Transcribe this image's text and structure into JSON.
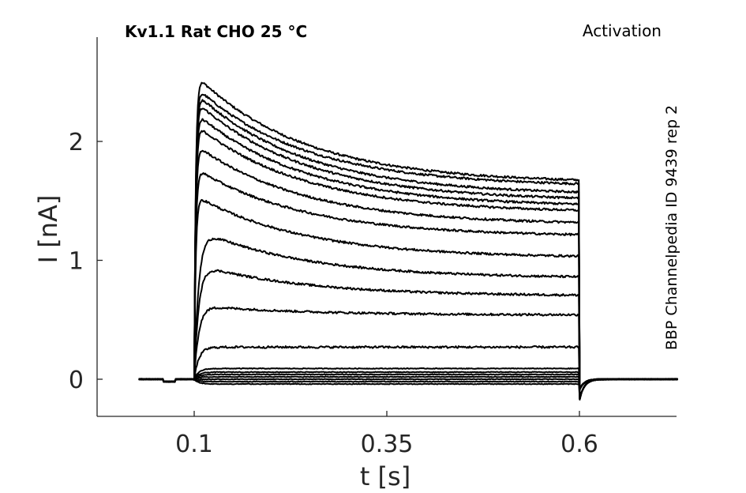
{
  "chart_data": {
    "type": "line",
    "title": "Kv1.1  Rat  CHO  25 °C",
    "right_title": "Activation",
    "side_label": "BBP Channelpedia ID 9439 rep 2",
    "xlabel": "t [s]",
    "ylabel": "I [nA]",
    "xlim": [
      -0.0,
      0.75
    ],
    "ylim": [
      -0.3,
      2.9
    ],
    "xticks": [
      0.1,
      0.35,
      0.6
    ],
    "xtick_labels": [
      "0.1",
      "0.35",
      "0.6"
    ],
    "yticks": [
      0,
      1,
      2
    ],
    "ytick_labels": [
      "0",
      "1",
      "2"
    ],
    "grid": false,
    "stimulus": {
      "on": 0.1,
      "off": 0.6,
      "t_start": 0.028,
      "t_end": 0.728
    },
    "series": [
      {
        "peak": 2.57,
        "end": 1.65
      },
      {
        "peak": 2.47,
        "end": 1.62
      },
      {
        "peak": 2.42,
        "end": 1.55
      },
      {
        "peak": 2.35,
        "end": 1.5
      },
      {
        "peak": 2.25,
        "end": 1.45
      },
      {
        "peak": 2.15,
        "end": 1.4
      },
      {
        "peak": 1.98,
        "end": 1.3
      },
      {
        "peak": 1.78,
        "end": 1.2
      },
      {
        "peak": 1.55,
        "end": 1.02
      },
      {
        "peak": 1.27,
        "end": 0.85
      },
      {
        "peak": 0.97,
        "end": 0.7
      },
      {
        "peak": 0.62,
        "end": 0.54
      },
      {
        "peak": 0.27,
        "end": 0.27
      },
      {
        "peak": 0.09,
        "end": 0.09
      },
      {
        "peak": 0.06,
        "end": 0.06
      },
      {
        "peak": 0.04,
        "end": 0.04
      },
      {
        "peak": 0.02,
        "end": 0.02
      },
      {
        "peak": 0.0,
        "end": 0.0
      },
      {
        "peak": -0.02,
        "end": -0.02
      },
      {
        "peak": -0.04,
        "end": -0.04
      }
    ]
  }
}
